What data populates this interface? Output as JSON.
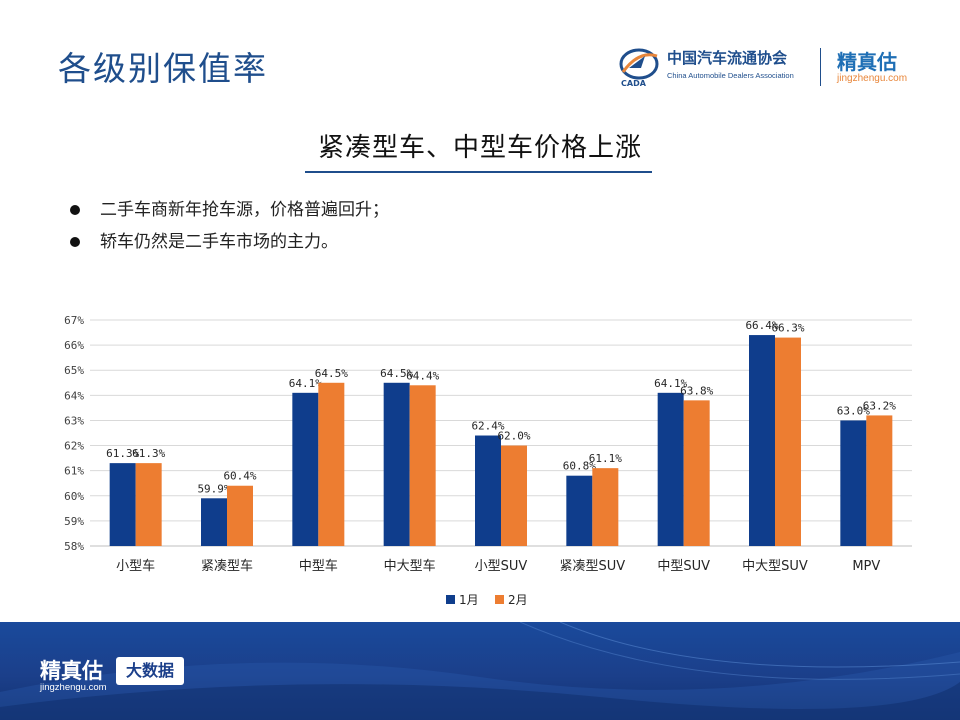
{
  "header": {
    "title": "各级别保值率",
    "cada_name_cn": "中国汽车流通协会",
    "cada_name_en": "China Automobile Dealers Association",
    "cada_emblem_text": "CADA",
    "jzg_name_cn": "精真估",
    "jzg_domain": "jingzhengu.com"
  },
  "headline": "紧凑型车、中型车价格上涨",
  "bullets": [
    "二手车商新年抢车源，价格普遍回升；",
    "轿车仍然是二手车市场的主力。"
  ],
  "chart_data": {
    "type": "bar",
    "categories": [
      "小型车",
      "紧凑型车",
      "中型车",
      "中大型车",
      "小型SUV",
      "紧凑型SUV",
      "中型SUV",
      "中大型SUV",
      "MPV"
    ],
    "series": [
      {
        "name": "1月",
        "values": [
          61.3,
          59.9,
          64.1,
          64.5,
          62.4,
          60.8,
          64.1,
          66.4,
          63.0
        ],
        "labels": [
          "61.3%",
          "59.9%",
          "64.1%",
          "64.5%",
          "62.4%",
          "60.8%",
          "64.1%",
          "66.4%",
          "63.0%"
        ],
        "color": "#0f3d8c"
      },
      {
        "name": "2月",
        "values": [
          61.3,
          60.4,
          64.5,
          64.4,
          62.0,
          61.1,
          63.8,
          66.3,
          63.2
        ],
        "labels": [
          "61.3%",
          "60.4%",
          "64.5%",
          "64.4%",
          "62.0%",
          "61.1%",
          "63.8%",
          "66.3%",
          "63.2%"
        ],
        "color": "#ed7d31"
      }
    ],
    "ylim": [
      58,
      67
    ],
    "yticks": [
      "58%",
      "59%",
      "60%",
      "61%",
      "62%",
      "63%",
      "64%",
      "65%",
      "66%",
      "67%"
    ],
    "grid": true,
    "legend": "bottom"
  },
  "footer": {
    "logo_cn": "精真估",
    "logo_en": "jingzhengu.com",
    "badge": "大数据"
  }
}
